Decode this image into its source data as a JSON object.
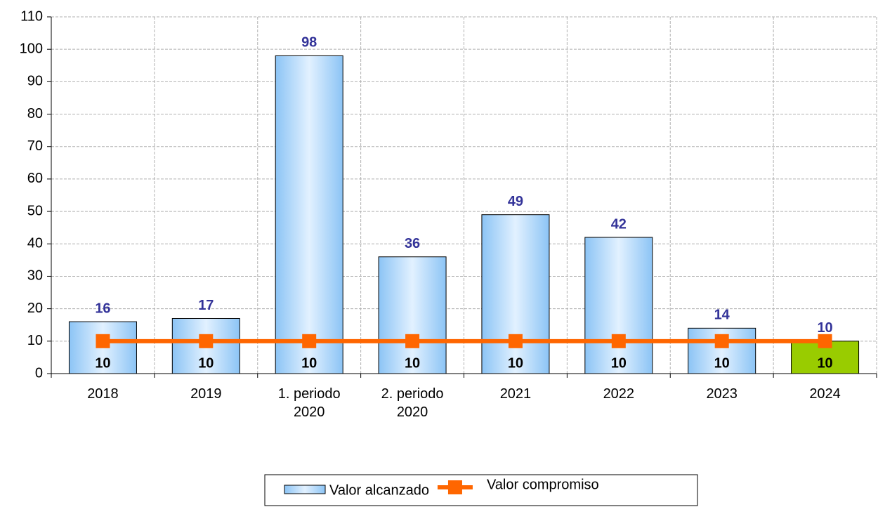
{
  "chart_data": {
    "type": "bar",
    "categories": [
      "2018",
      "2019",
      "1. periodo\n2020",
      "2. periodo\n2020",
      "2021",
      "2022",
      "2023",
      "2024"
    ],
    "series": [
      {
        "name": "Valor alcanzado",
        "type": "bar",
        "color": "#a8d4f8",
        "colors": [
          "#a8d4f8",
          "#a8d4f8",
          "#a8d4f8",
          "#a8d4f8",
          "#a8d4f8",
          "#a8d4f8",
          "#a8d4f8",
          "#99cc00"
        ],
        "label_color": "#333399",
        "values": [
          16,
          17,
          98,
          36,
          49,
          42,
          14,
          10
        ]
      },
      {
        "name": "Valor compromiso",
        "type": "line",
        "color": "#ff6600",
        "label_color": "#000000",
        "values": [
          10,
          10,
          10,
          10,
          10,
          10,
          10,
          10
        ]
      }
    ],
    "ylim": [
      0,
      110
    ],
    "yticks": [
      0,
      10,
      20,
      30,
      40,
      50,
      60,
      70,
      80,
      90,
      100,
      110
    ],
    "grid": true,
    "legend": "bottom"
  }
}
